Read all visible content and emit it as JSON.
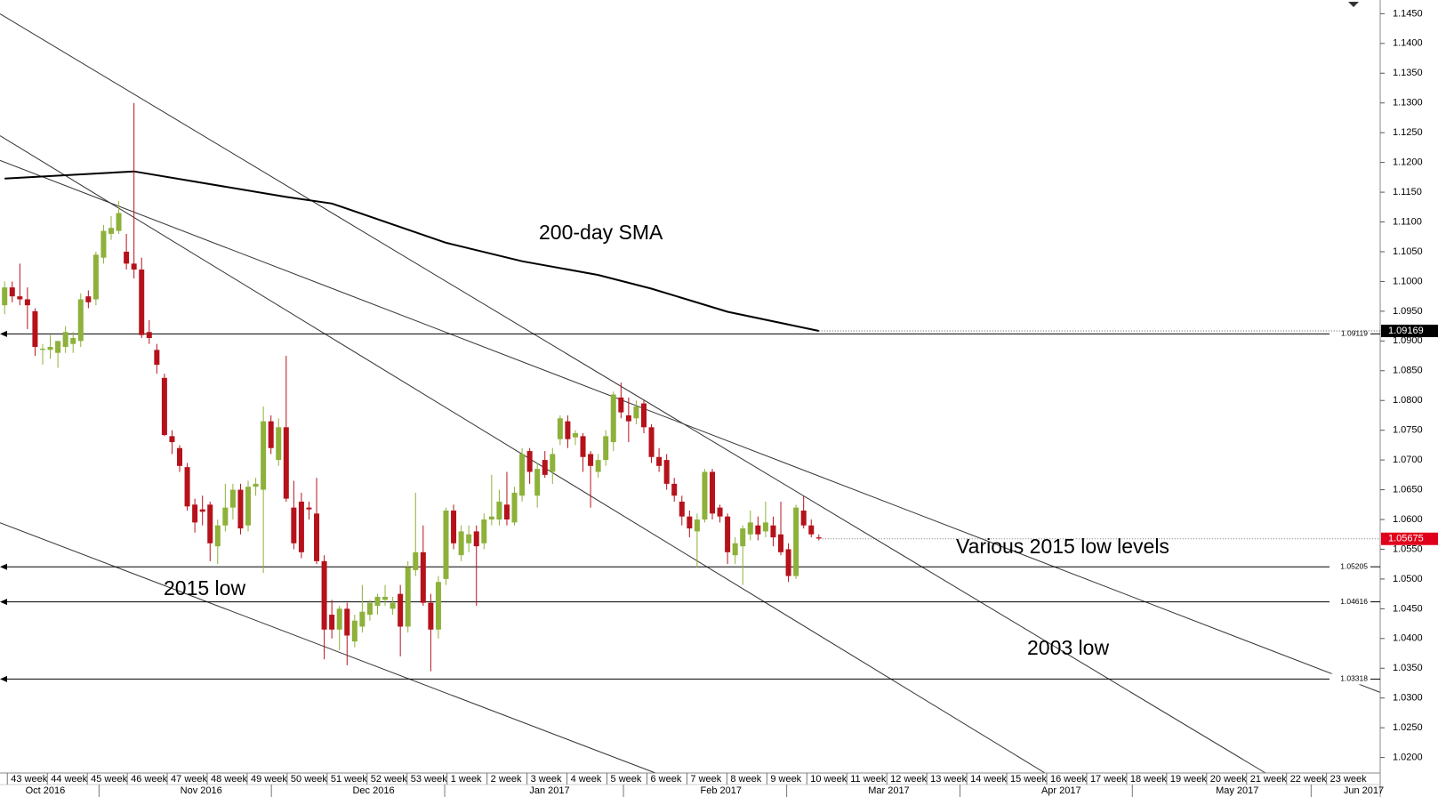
{
  "chart_data": {
    "type": "candlestick",
    "ylim": [
      1.0174,
      1.1473
    ],
    "yticks": [
      {
        "value": 1.145,
        "label": "1.1450"
      },
      {
        "value": 1.14,
        "label": "1.1400"
      },
      {
        "value": 1.135,
        "label": "1.1350"
      },
      {
        "value": 1.13,
        "label": "1.1300"
      },
      {
        "value": 1.125,
        "label": "1.1250"
      },
      {
        "value": 1.12,
        "label": "1.1200"
      },
      {
        "value": 1.115,
        "label": "1.1150"
      },
      {
        "value": 1.11,
        "label": "1.1100"
      },
      {
        "value": 1.105,
        "label": "1.1050"
      },
      {
        "value": 1.1,
        "label": "1.1000"
      },
      {
        "value": 1.095,
        "label": "1.0950"
      },
      {
        "value": 1.09,
        "label": "1.0900"
      },
      {
        "value": 1.085,
        "label": "1.0850"
      },
      {
        "value": 1.08,
        "label": "1.0800"
      },
      {
        "value": 1.075,
        "label": "1.0750"
      },
      {
        "value": 1.07,
        "label": "1.0700"
      },
      {
        "value": 1.065,
        "label": "1.0650"
      },
      {
        "value": 1.06,
        "label": "1.0600"
      },
      {
        "value": 1.055,
        "label": "1.0550"
      },
      {
        "value": 1.05,
        "label": "1.0500"
      },
      {
        "value": 1.045,
        "label": "1.0450"
      },
      {
        "value": 1.04,
        "label": "1.0400"
      },
      {
        "value": 1.035,
        "label": "1.0350"
      },
      {
        "value": 1.03,
        "label": "1.0300"
      },
      {
        "value": 1.025,
        "label": "1.0250"
      },
      {
        "value": 1.02,
        "label": "1.0200"
      }
    ],
    "categories": [
      "43 week",
      "44 week",
      "45 week",
      "46 week",
      "47 week",
      "48 week",
      "49 week",
      "50 week",
      "51 week",
      "52 week",
      "53 week",
      "1 week",
      "2 week",
      "3 week",
      "4 week",
      "5 week",
      "6 week",
      "7 week",
      "8 week",
      "9 week",
      "10 week",
      "11 week",
      "12 week",
      "13 week",
      "14 week",
      "15 week",
      "16 week",
      "17 week",
      "18 week",
      "19 week",
      "20 week",
      "21 week",
      "22 week",
      "23 week"
    ],
    "months": [
      "Oct 2016",
      "Nov 2016",
      "Dec 2016",
      "Jan 2017",
      "Feb 2017",
      "Mar 2017",
      "Apr 2017",
      "May 2017",
      "Jun 2017"
    ],
    "up_color": "#8db13a",
    "down_color": "#b5121b",
    "open": [
      1.096,
      1.099,
      1.0975,
      1.097,
      1.095,
      1.0885,
      1.0885,
      1.088,
      1.089,
      1.0895,
      1.09,
      1.0975,
      1.097,
      1.104,
      1.108,
      1.1085,
      1.105,
      1.103,
      1.102,
      1.0915,
      1.0885,
      1.0838,
      1.074,
      1.072,
      1.0688,
      1.0625,
      1.0617,
      1.0625,
      1.0555,
      1.059,
      1.062,
      1.065,
      1.059,
      1.0655,
      1.065,
      1.0765,
      1.07,
      1.0755,
      1.062,
      1.063,
      1.062,
      1.061,
      1.053,
      1.044,
      1.0415,
      1.045,
      1.0395,
      1.042,
      1.044,
      1.0455,
      1.0465,
      1.045,
      1.0475,
      1.042,
      1.0515,
      1.0545,
      1.046,
      1.0415,
      1.05,
      1.0615,
      1.054,
      1.056,
      1.058,
      1.056,
      1.06,
      1.06,
      1.0625,
      1.0595,
      1.064,
      1.0715,
      1.064,
      1.07,
      1.068,
      1.0735,
      1.0765,
      1.0738,
      1.074,
      1.071,
      1.068,
      1.07,
      1.073,
      1.0805,
      1.0775,
      1.077,
      1.0795,
      1.0755,
      1.0705,
      1.07,
      1.066,
      1.063,
      1.0605,
      1.058,
      1.06,
      1.068,
      1.062,
      1.0605,
      1.054,
      1.0555,
      1.0575,
      1.059,
      1.058,
      1.059,
      1.0575,
      1.055,
      1.0505,
      1.0615,
      1.059,
      1.057
    ],
    "high": [
      1.1,
      1.1,
      1.103,
      1.099,
      1.0955,
      1.0895,
      1.091,
      1.09,
      1.0925,
      1.0915,
      1.098,
      1.0985,
      1.105,
      1.1095,
      1.111,
      1.1135,
      1.108,
      1.13,
      1.104,
      1.0935,
      1.0895,
      1.0845,
      1.075,
      1.0725,
      1.0695,
      1.0635,
      1.064,
      1.063,
      1.06,
      1.066,
      1.066,
      1.066,
      1.0665,
      1.067,
      1.079,
      1.0775,
      1.077,
      1.0875,
      1.0665,
      1.0645,
      1.063,
      1.067,
      1.054,
      1.0465,
      1.0455,
      1.046,
      1.044,
      1.049,
      1.0465,
      1.0475,
      1.049,
      1.047,
      1.049,
      1.053,
      1.0645,
      1.059,
      1.0475,
      1.0505,
      1.062,
      1.0625,
      1.059,
      1.059,
      1.059,
      1.061,
      1.0675,
      1.065,
      1.068,
      1.0655,
      1.072,
      1.072,
      1.0695,
      1.0715,
      1.072,
      1.0775,
      1.0775,
      1.075,
      1.0745,
      1.0715,
      1.071,
      1.075,
      1.0815,
      1.083,
      1.0805,
      1.08,
      1.08,
      1.076,
      1.072,
      1.071,
      1.067,
      1.064,
      1.0615,
      1.061,
      1.0685,
      1.0685,
      1.0625,
      1.061,
      1.057,
      1.059,
      1.0615,
      1.0605,
      1.063,
      1.0605,
      1.063,
      1.056,
      1.0625,
      1.064,
      1.06,
      1.0575
    ],
    "low": [
      1.0945,
      1.0965,
      1.096,
      1.092,
      1.0875,
      1.086,
      1.087,
      1.0855,
      1.088,
      1.088,
      1.089,
      1.0955,
      1.096,
      1.103,
      1.107,
      1.108,
      1.102,
      1.1005,
      1.0905,
      1.0895,
      1.0845,
      1.074,
      1.071,
      1.068,
      1.0615,
      1.0578,
      1.059,
      1.053,
      1.0525,
      1.058,
      1.06,
      1.0575,
      1.058,
      1.064,
      1.051,
      1.071,
      1.069,
      1.063,
      1.055,
      1.0535,
      1.06,
      1.0525,
      1.0365,
      1.04,
      1.038,
      1.0355,
      1.0385,
      1.041,
      1.043,
      1.044,
      1.0455,
      1.044,
      1.037,
      1.041,
      1.0505,
      1.0455,
      1.0345,
      1.04,
      1.049,
      1.055,
      1.053,
      1.0545,
      1.0455,
      1.055,
      1.059,
      1.059,
      1.059,
      1.059,
      1.063,
      1.066,
      1.062,
      1.067,
      1.066,
      1.0725,
      1.072,
      1.0725,
      1.068,
      1.062,
      1.067,
      1.069,
      1.0715,
      1.077,
      1.073,
      1.076,
      1.0745,
      1.0695,
      1.068,
      1.065,
      1.063,
      1.059,
      1.057,
      1.052,
      1.0595,
      1.06,
      1.0595,
      1.0525,
      1.0525,
      1.049,
      1.0565,
      1.0565,
      1.057,
      1.0555,
      1.054,
      1.0495,
      1.05,
      1.0585,
      1.057,
      1.0565
    ],
    "close": [
      1.099,
      1.0975,
      1.097,
      1.096,
      1.089,
      1.0887,
      1.089,
      1.09,
      1.0915,
      1.0905,
      1.097,
      1.0965,
      1.1045,
      1.1085,
      1.109,
      1.1115,
      1.103,
      1.102,
      1.091,
      1.0905,
      1.086,
      1.0742,
      1.073,
      1.069,
      1.0622,
      1.0595,
      1.0613,
      1.056,
      1.059,
      1.062,
      1.065,
      1.0585,
      1.0655,
      1.066,
      1.0765,
      1.072,
      1.0755,
      1.0635,
      1.056,
      1.0545,
      1.0617,
      1.053,
      1.0415,
      1.0415,
      1.045,
      1.0405,
      1.043,
      1.0445,
      1.046,
      1.047,
      1.047,
      1.046,
      1.042,
      1.052,
      1.0545,
      1.046,
      1.0415,
      1.0495,
      1.0615,
      1.056,
      1.058,
      1.0575,
      1.0555,
      1.06,
      1.0605,
      1.063,
      1.06,
      1.0645,
      1.071,
      1.068,
      1.0685,
      1.0675,
      1.071,
      1.077,
      1.0735,
      1.0745,
      1.0705,
      1.069,
      1.07,
      1.074,
      1.081,
      1.078,
      1.0765,
      1.079,
      1.0755,
      1.0705,
      1.069,
      1.066,
      1.064,
      1.0605,
      1.0585,
      1.06,
      1.068,
      1.061,
      1.0605,
      1.0545,
      1.056,
      1.0585,
      1.0595,
      1.0575,
      1.0595,
      1.057,
      1.0545,
      1.0505,
      1.062,
      1.059,
      1.0575,
      1.0568
    ],
    "line_series": {
      "color": "#000000",
      "x": [
        0,
        17,
        37,
        43,
        58,
        68,
        78,
        85,
        95,
        107
      ],
      "values": [
        1.1173,
        1.1185,
        1.1142,
        1.1131,
        1.1065,
        1.1034,
        1.1011,
        1.0988,
        1.0949,
        1.0917
      ]
    },
    "levels": [
      1.09119,
      1.05205,
      1.04616,
      1.03318
    ],
    "price_tags": [
      {
        "value": 1.09169,
        "color": "#000000"
      },
      {
        "value": 1.05675,
        "color": "#e0001b"
      }
    ],
    "annotations": [
      "200-day SMA",
      "Various 2015 low levels",
      "2015 low",
      "2003 low"
    ]
  }
}
